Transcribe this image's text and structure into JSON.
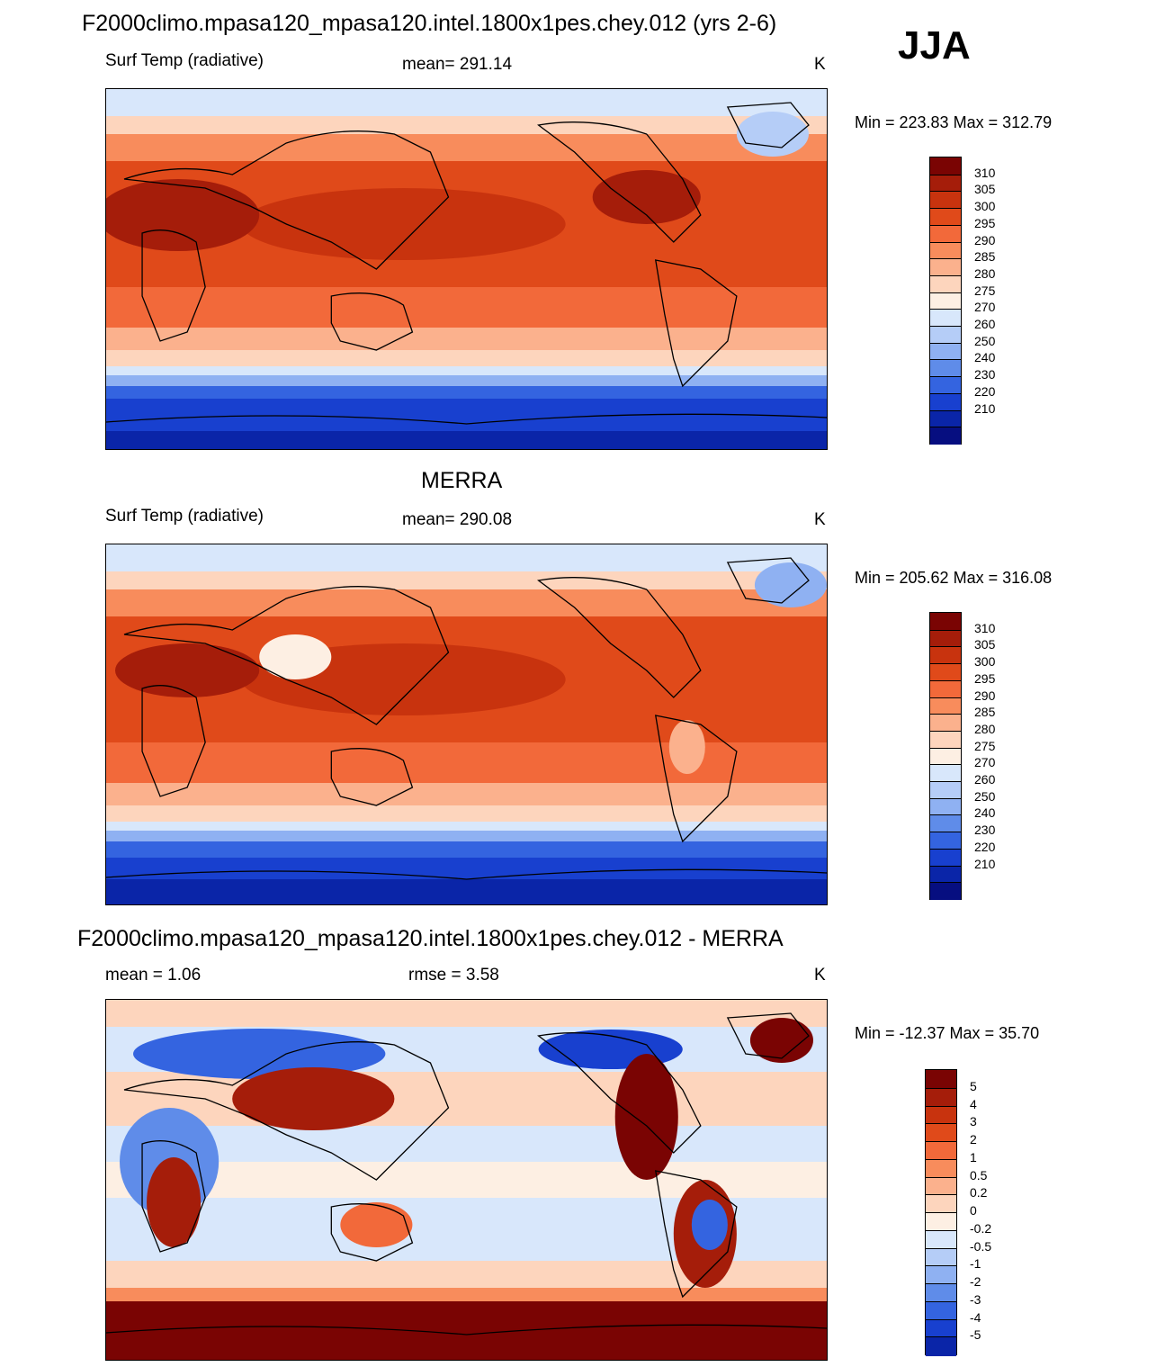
{
  "season": "JJA",
  "panels": [
    {
      "title": "F2000climo.mpasa120_mpasa120.intel.1800x1pes.chey.012 (yrs 2-6)",
      "left_label": "Surf Temp (radiative)",
      "center_label": "mean= 291.14",
      "units": "K",
      "minmax": "Min = 223.83 Max = 312.79",
      "colorbar_labels": [
        "310",
        "305",
        "300",
        "295",
        "290",
        "285",
        "280",
        "275",
        "270",
        "260",
        "250",
        "240",
        "230",
        "220",
        "210"
      ]
    },
    {
      "title": "MERRA",
      "left_label": "Surf Temp (radiative)",
      "center_label": "mean= 290.08",
      "units": "K",
      "minmax": "Min = 205.62 Max = 316.08",
      "colorbar_labels": [
        "310",
        "305",
        "300",
        "295",
        "290",
        "285",
        "280",
        "275",
        "270",
        "260",
        "250",
        "240",
        "230",
        "220",
        "210"
      ]
    },
    {
      "title": "F2000climo.mpasa120_mpasa120.intel.1800x1pes.chey.012 - MERRA",
      "left_label": "mean =   1.06",
      "center_label": "rmse =   3.58",
      "units": "K",
      "minmax": "Min = -12.37 Max =  35.70",
      "colorbar_labels": [
        "5",
        "4",
        "3",
        "2",
        "1",
        "0.5",
        "0.2",
        "0",
        "-0.2",
        "-0.5",
        "-1",
        "-2",
        "-3",
        "-4",
        "-5"
      ]
    }
  ],
  "colors": {
    "abs_scale": [
      "#7a0403",
      "#a51d0a",
      "#c8330e",
      "#e04a1a",
      "#f2693a",
      "#f88c5c",
      "#fbb18d",
      "#fdd5bd",
      "#fdefe3",
      "#d8e7fb",
      "#b5cdf7",
      "#8fb1f2",
      "#5f8ce9",
      "#3464e0",
      "#1840cf",
      "#0a25a8",
      "#060e80"
    ],
    "diff_scale": [
      "#7a0403",
      "#a51d0a",
      "#c8330e",
      "#e04a1a",
      "#f2693a",
      "#f88c5c",
      "#fbb18d",
      "#fdd5bd",
      "#fdefe3",
      "#d8e7fb",
      "#b5cdf7",
      "#8fb1f2",
      "#5f8ce9",
      "#3464e0",
      "#1840cf",
      "#0a25a8"
    ]
  }
}
